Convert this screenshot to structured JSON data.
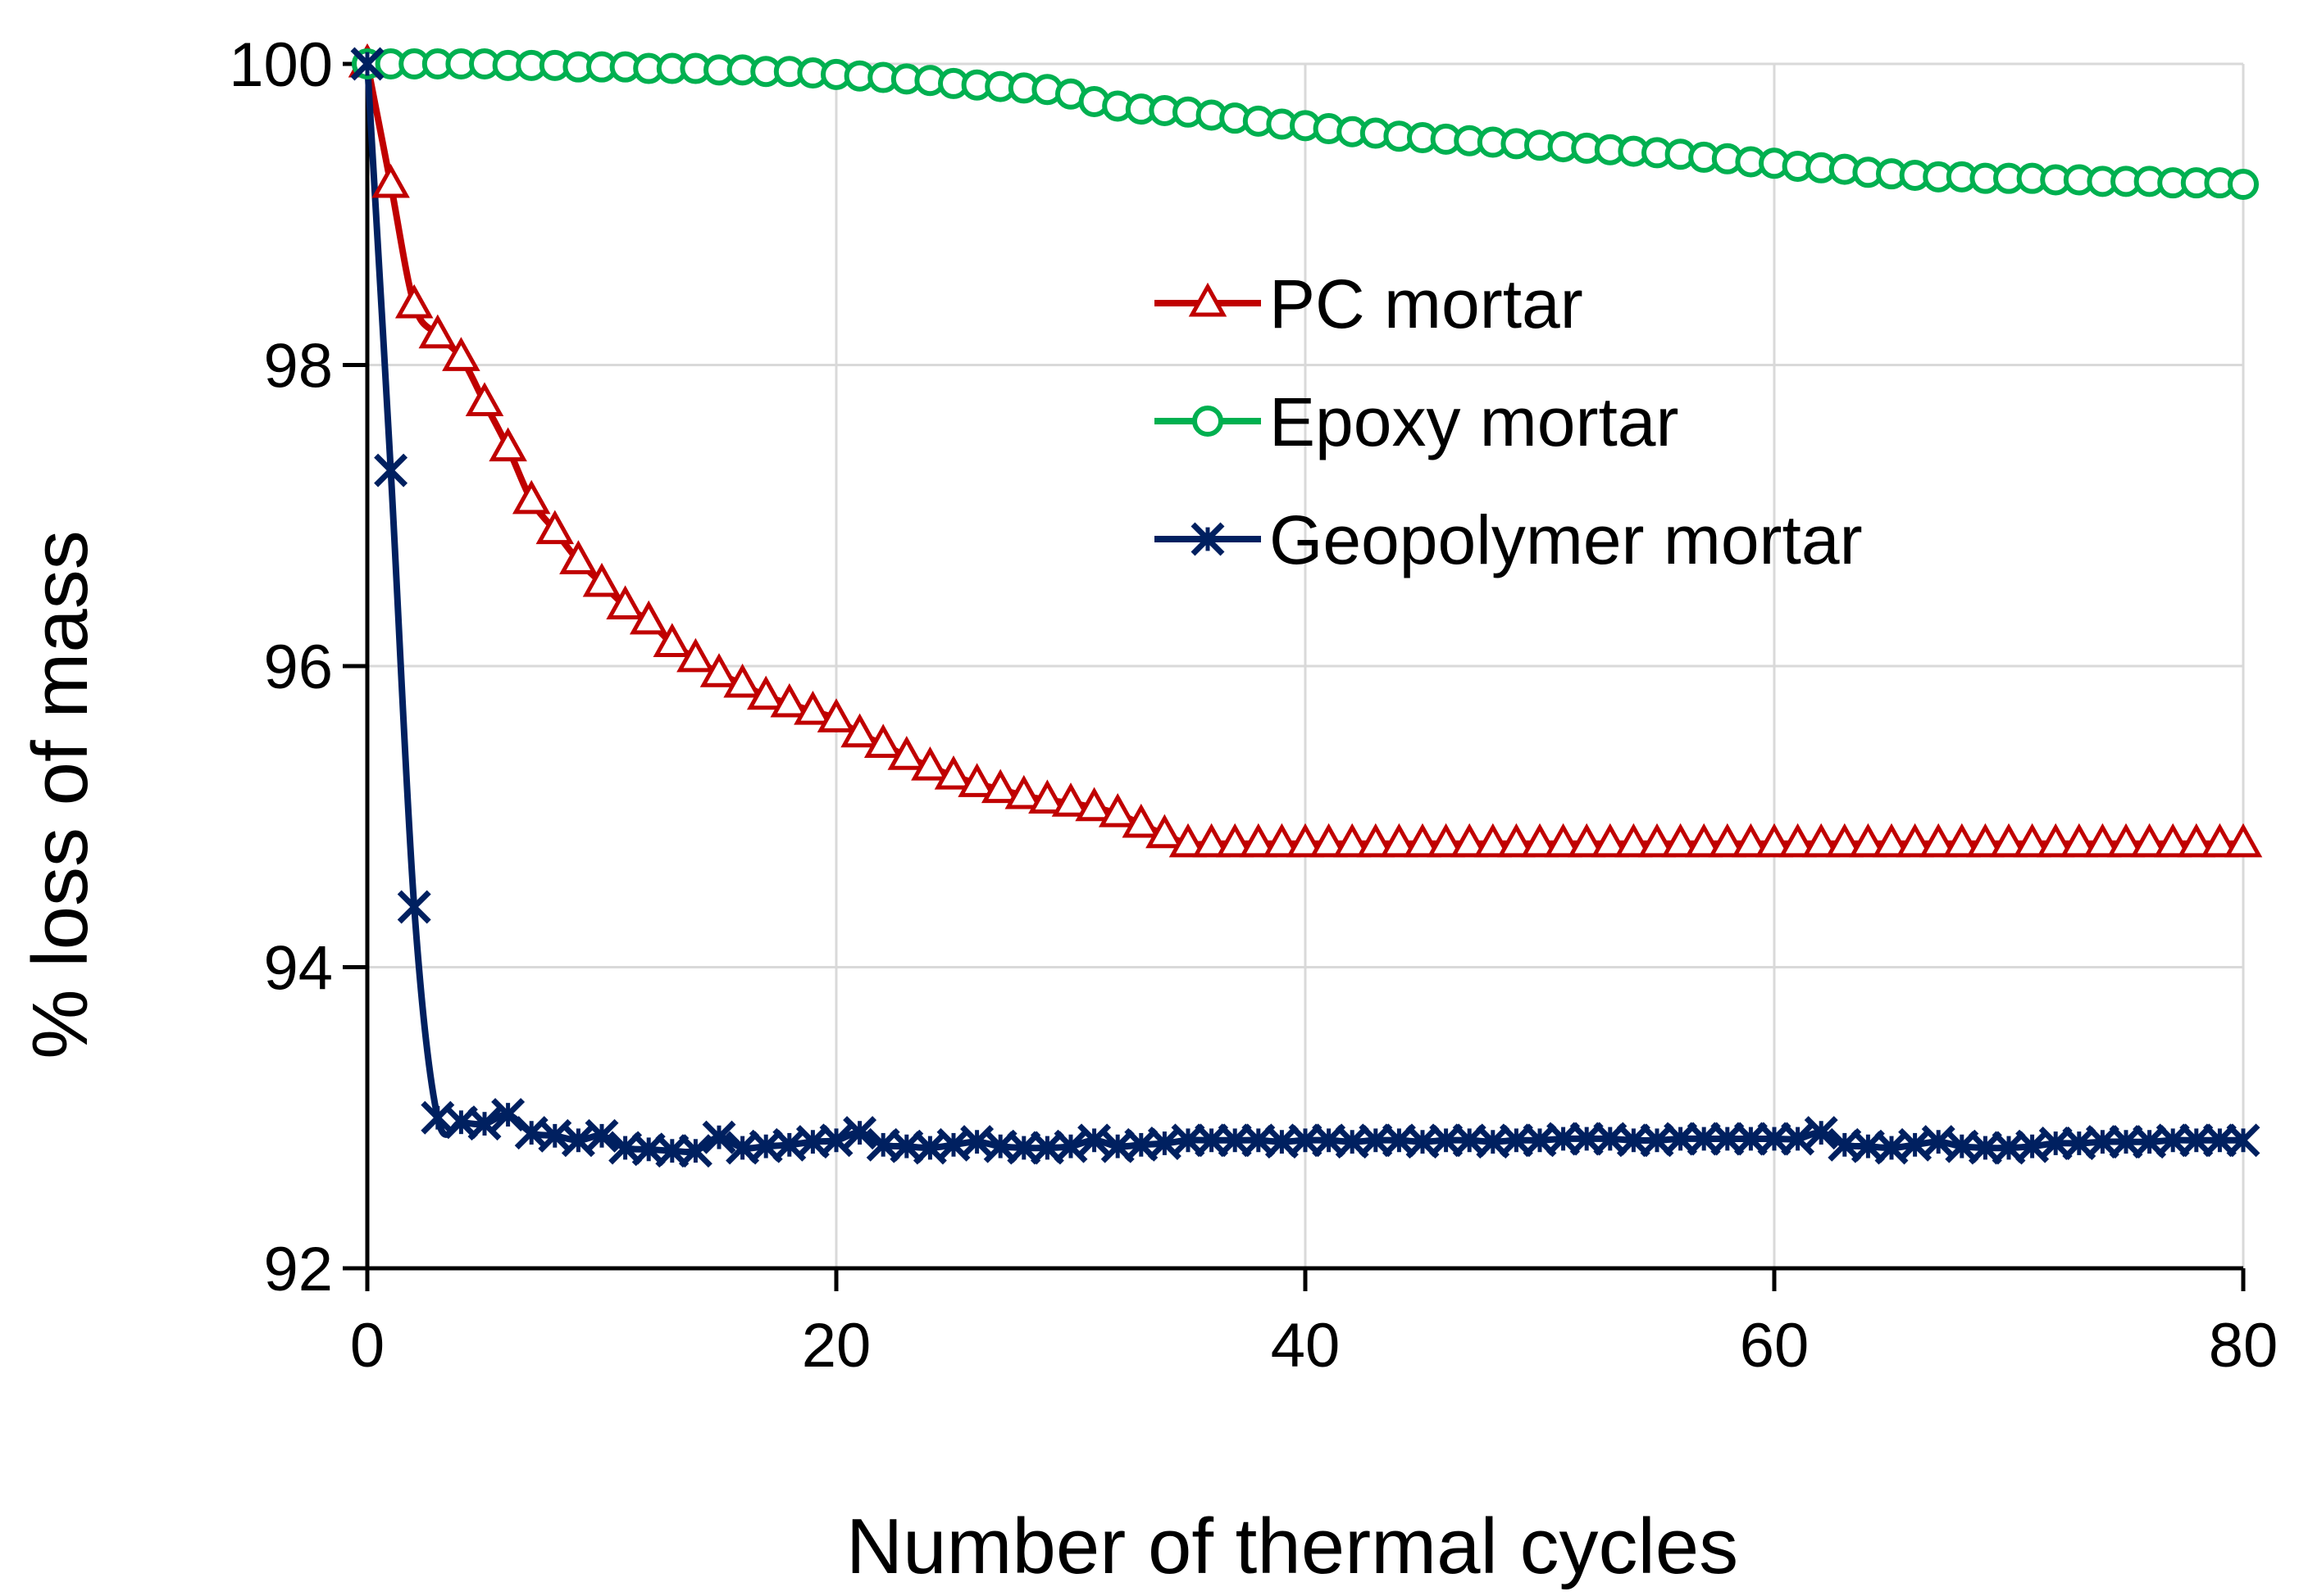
{
  "chart_data": {
    "type": "line",
    "title": "",
    "xlabel": "Number of thermal cycles",
    "ylabel": "%   loss of mass",
    "xlim": [
      0,
      80
    ],
    "ylim": [
      92,
      100
    ],
    "xticks": [
      0,
      20,
      40,
      60,
      80
    ],
    "yticks": [
      92,
      94,
      96,
      98,
      100
    ],
    "grid": true,
    "legend_position": "upper-center",
    "series": [
      {
        "name": "PC mortar",
        "color": "#c00000",
        "marker": "triangle",
        "x": [
          0,
          1,
          2,
          3,
          4,
          5,
          6,
          7,
          8,
          9,
          10,
          11,
          12,
          13,
          14,
          15,
          16,
          17,
          18,
          19,
          20,
          21,
          22,
          23,
          24,
          25,
          26,
          27,
          28,
          29,
          30,
          31,
          32,
          33,
          34,
          35,
          36,
          37,
          38,
          39,
          40,
          41,
          42,
          43,
          44,
          45,
          46,
          47,
          48,
          49,
          50,
          51,
          52,
          53,
          54,
          55,
          56,
          57,
          58,
          59,
          60,
          61,
          62,
          63,
          64,
          65,
          66,
          67,
          68,
          69,
          70,
          71,
          72,
          73,
          74,
          75,
          76,
          77,
          78,
          79,
          80
        ],
        "values": [
          100,
          99.2,
          98.4,
          98.2,
          98.05,
          97.75,
          97.45,
          97.1,
          96.9,
          96.7,
          96.55,
          96.4,
          96.3,
          96.15,
          96.05,
          95.95,
          95.88,
          95.8,
          95.75,
          95.7,
          95.65,
          95.55,
          95.48,
          95.4,
          95.33,
          95.27,
          95.22,
          95.18,
          95.14,
          95.11,
          95.09,
          95.06,
          95.02,
          94.95,
          94.88,
          94.82,
          94.82,
          94.82,
          94.82,
          94.82,
          94.82,
          94.82,
          94.82,
          94.82,
          94.82,
          94.82,
          94.82,
          94.82,
          94.82,
          94.82,
          94.82,
          94.82,
          94.82,
          94.82,
          94.82,
          94.82,
          94.82,
          94.82,
          94.82,
          94.82,
          94.82,
          94.82,
          94.82,
          94.82,
          94.82,
          94.82,
          94.82,
          94.82,
          94.82,
          94.82,
          94.82,
          94.82,
          94.82,
          94.82,
          94.82,
          94.82,
          94.82,
          94.82,
          94.82,
          94.82,
          94.82
        ]
      },
      {
        "name": "Epoxy mortar",
        "color": "#00b050",
        "marker": "circle",
        "x": [
          0,
          1,
          2,
          3,
          4,
          5,
          6,
          7,
          8,
          9,
          10,
          11,
          12,
          13,
          14,
          15,
          16,
          17,
          18,
          19,
          20,
          21,
          22,
          23,
          24,
          25,
          26,
          27,
          28,
          29,
          30,
          31,
          32,
          33,
          34,
          35,
          36,
          37,
          38,
          39,
          40,
          41,
          42,
          43,
          44,
          45,
          46,
          47,
          48,
          49,
          50,
          51,
          52,
          53,
          54,
          55,
          56,
          57,
          58,
          59,
          60,
          61,
          62,
          63,
          64,
          65,
          66,
          67,
          68,
          69,
          70,
          71,
          72,
          73,
          74,
          75,
          76,
          77,
          78,
          79,
          80
        ],
        "values": [
          100,
          100,
          100,
          100,
          100,
          100,
          99.99,
          99.99,
          99.99,
          99.98,
          99.98,
          99.98,
          99.97,
          99.97,
          99.97,
          99.96,
          99.96,
          99.95,
          99.95,
          99.94,
          99.93,
          99.92,
          99.91,
          99.9,
          99.89,
          99.87,
          99.86,
          99.85,
          99.84,
          99.83,
          99.8,
          99.75,
          99.72,
          99.7,
          99.69,
          99.68,
          99.66,
          99.64,
          99.62,
          99.6,
          99.59,
          99.57,
          99.55,
          99.54,
          99.52,
          99.51,
          99.5,
          99.49,
          99.48,
          99.47,
          99.46,
          99.45,
          99.44,
          99.43,
          99.42,
          99.41,
          99.4,
          99.38,
          99.37,
          99.35,
          99.34,
          99.32,
          99.31,
          99.3,
          99.28,
          99.27,
          99.26,
          99.25,
          99.25,
          99.24,
          99.24,
          99.24,
          99.23,
          99.23,
          99.22,
          99.22,
          99.22,
          99.21,
          99.21,
          99.21,
          99.2
        ]
      },
      {
        "name": "Geopolymer mortar",
        "color": "#002060",
        "marker": "star",
        "x": [
          0,
          1,
          2,
          3,
          4,
          5,
          6,
          7,
          8,
          9,
          10,
          11,
          12,
          13,
          14,
          15,
          16,
          17,
          18,
          19,
          20,
          21,
          22,
          23,
          24,
          25,
          26,
          27,
          28,
          29,
          30,
          31,
          32,
          33,
          34,
          35,
          36,
          37,
          38,
          39,
          40,
          41,
          42,
          43,
          44,
          45,
          46,
          47,
          48,
          49,
          50,
          51,
          52,
          53,
          54,
          55,
          56,
          57,
          58,
          59,
          60,
          61,
          62,
          63,
          64,
          65,
          66,
          67,
          68,
          69,
          70,
          71,
          72,
          73,
          74,
          75,
          76,
          77,
          78,
          79,
          80
        ],
        "values": [
          100,
          97.3,
          94.4,
          93,
          92.97,
          92.96,
          93.02,
          92.9,
          92.88,
          92.85,
          92.88,
          92.8,
          92.79,
          92.78,
          92.78,
          92.87,
          92.8,
          92.81,
          92.82,
          92.84,
          92.85,
          92.9,
          92.82,
          92.81,
          92.8,
          92.82,
          92.84,
          92.81,
          92.8,
          92.8,
          92.81,
          92.85,
          92.81,
          92.82,
          92.83,
          92.85,
          92.85,
          92.85,
          92.85,
          92.84,
          92.85,
          92.85,
          92.84,
          92.85,
          92.85,
          92.84,
          92.85,
          92.85,
          92.84,
          92.85,
          92.85,
          92.86,
          92.86,
          92.86,
          92.85,
          92.85,
          92.86,
          92.86,
          92.86,
          92.86,
          92.86,
          92.86,
          92.9,
          92.82,
          92.81,
          92.8,
          92.82,
          92.84,
          92.81,
          92.8,
          92.8,
          92.81,
          92.83,
          92.83,
          92.84,
          92.84,
          92.84,
          92.85,
          92.85,
          92.85,
          92.85
        ]
      }
    ]
  }
}
